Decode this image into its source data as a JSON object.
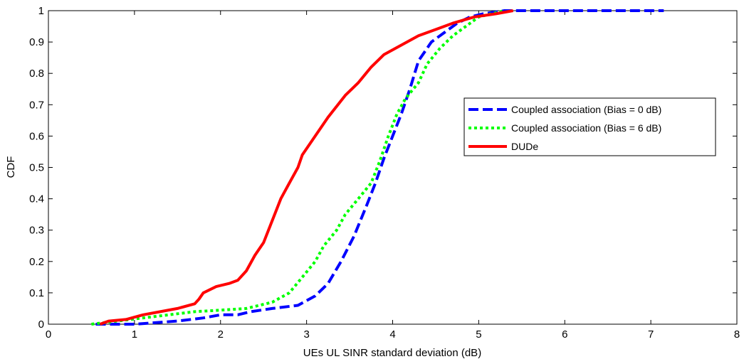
{
  "chart_data": {
    "type": "line",
    "title": "",
    "xlabel": "UEs UL SINR standard deviation (dB)",
    "ylabel": "CDF",
    "xlim": [
      0,
      8
    ],
    "ylim": [
      0,
      1
    ],
    "xticks": [
      "0",
      "1",
      "2",
      "3",
      "4",
      "5",
      "6",
      "7",
      "8"
    ],
    "yticks": [
      "0",
      "0.1",
      "0.2",
      "0.3",
      "0.4",
      "0.5",
      "0.6",
      "0.7",
      "0.8",
      "0.9",
      "1"
    ],
    "grid": false,
    "legend_position": "right",
    "series": [
      {
        "name": "Coupled association (Bias = 0 dB)",
        "color": "#0000ff",
        "style": "dashed",
        "points": [
          [
            0.55,
            0
          ],
          [
            1.0,
            0.0
          ],
          [
            1.5,
            0.01
          ],
          [
            1.8,
            0.02
          ],
          [
            2.0,
            0.03
          ],
          [
            2.2,
            0.03
          ],
          [
            2.35,
            0.04
          ],
          [
            2.6,
            0.05
          ],
          [
            2.9,
            0.06
          ],
          [
            3.1,
            0.09
          ],
          [
            3.25,
            0.13
          ],
          [
            3.4,
            0.2
          ],
          [
            3.55,
            0.28
          ],
          [
            3.7,
            0.38
          ],
          [
            3.8,
            0.45
          ],
          [
            3.9,
            0.53
          ],
          [
            4.0,
            0.6
          ],
          [
            4.1,
            0.67
          ],
          [
            4.2,
            0.75
          ],
          [
            4.3,
            0.84
          ],
          [
            4.45,
            0.9
          ],
          [
            4.6,
            0.93
          ],
          [
            4.75,
            0.96
          ],
          [
            4.9,
            0.98
          ],
          [
            5.05,
            0.99
          ],
          [
            5.3,
            1.0
          ],
          [
            6.0,
            1.0
          ],
          [
            7.15,
            1.0
          ]
        ]
      },
      {
        "name": "Coupled association (Bias = 6 dB)",
        "color": "#00ff00",
        "style": "dotted",
        "points": [
          [
            0.5,
            0.0
          ],
          [
            0.8,
            0.01
          ],
          [
            1.1,
            0.02
          ],
          [
            1.4,
            0.03
          ],
          [
            1.7,
            0.04
          ],
          [
            2.0,
            0.045
          ],
          [
            2.3,
            0.05
          ],
          [
            2.6,
            0.07
          ],
          [
            2.8,
            0.1
          ],
          [
            2.95,
            0.15
          ],
          [
            3.1,
            0.2
          ],
          [
            3.2,
            0.25
          ],
          [
            3.35,
            0.3
          ],
          [
            3.45,
            0.35
          ],
          [
            3.6,
            0.4
          ],
          [
            3.75,
            0.45
          ],
          [
            3.85,
            0.52
          ],
          [
            3.95,
            0.6
          ],
          [
            4.05,
            0.67
          ],
          [
            4.15,
            0.72
          ],
          [
            4.3,
            0.77
          ],
          [
            4.4,
            0.83
          ],
          [
            4.55,
            0.88
          ],
          [
            4.7,
            0.92
          ],
          [
            4.85,
            0.95
          ],
          [
            5.0,
            0.98
          ],
          [
            5.15,
            0.99
          ],
          [
            5.3,
            1.0
          ]
        ]
      },
      {
        "name": "DUDe",
        "color": "#ff0000",
        "style": "solid",
        "points": [
          [
            0.6,
            0.0
          ],
          [
            0.7,
            0.01
          ],
          [
            0.9,
            0.015
          ],
          [
            1.1,
            0.03
          ],
          [
            1.3,
            0.04
          ],
          [
            1.5,
            0.05
          ],
          [
            1.7,
            0.065
          ],
          [
            1.75,
            0.08
          ],
          [
            1.8,
            0.1
          ],
          [
            1.95,
            0.12
          ],
          [
            2.1,
            0.13
          ],
          [
            2.2,
            0.14
          ],
          [
            2.3,
            0.17
          ],
          [
            2.4,
            0.22
          ],
          [
            2.5,
            0.26
          ],
          [
            2.6,
            0.33
          ],
          [
            2.7,
            0.4
          ],
          [
            2.8,
            0.45
          ],
          [
            2.9,
            0.5
          ],
          [
            2.95,
            0.54
          ],
          [
            3.1,
            0.6
          ],
          [
            3.25,
            0.66
          ],
          [
            3.45,
            0.73
          ],
          [
            3.6,
            0.77
          ],
          [
            3.75,
            0.82
          ],
          [
            3.9,
            0.86
          ],
          [
            4.1,
            0.89
          ],
          [
            4.3,
            0.92
          ],
          [
            4.5,
            0.94
          ],
          [
            4.7,
            0.96
          ],
          [
            4.95,
            0.98
          ],
          [
            5.2,
            0.99
          ],
          [
            5.4,
            1.0
          ]
        ]
      }
    ]
  }
}
